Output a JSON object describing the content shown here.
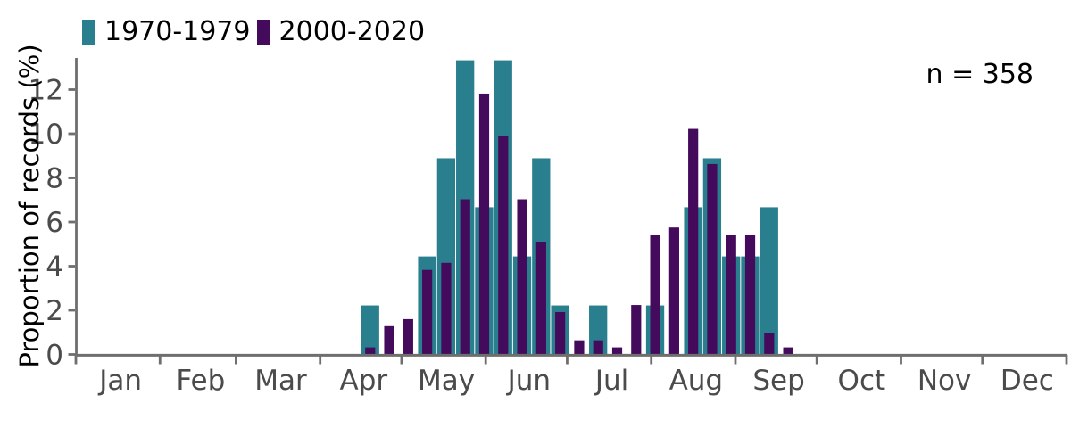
{
  "figure": {
    "y_axis_title": "Proportion of records (%)",
    "annotation": "n = 358",
    "legend": [
      {
        "label": "1970-1979",
        "color": "#2a7f8e"
      },
      {
        "label": "2000-2020",
        "color": "#440a5c"
      }
    ]
  },
  "chart_data": {
    "type": "bar",
    "title": "",
    "xlabel": "",
    "ylabel": "Proportion of records (%)",
    "annotation": "n = 358",
    "legend_position": "top-left",
    "grid": false,
    "background": "#ffffff",
    "axis_color": "#6e6e6e",
    "tick_label_color": "#4b4b4b",
    "x_tick_labels": [
      "Jan",
      "Feb",
      "Mar",
      "Apr",
      "May",
      "Jun",
      "Jul",
      "Aug",
      "Sep",
      "Oct",
      "Nov",
      "Dec"
    ],
    "y_ticks": [
      0,
      2,
      4,
      6,
      8,
      10,
      12
    ],
    "ylim": [
      0,
      13.4
    ],
    "x_axis_note": "calendar year, day-of-year scale; ticks at month starts; bars are 7-day bins starting Apr 15",
    "bin_start_day_of_year": 105,
    "bin_days": 7,
    "categories": [
      "Apr 15",
      "Apr 22",
      "Apr 29",
      "May 6",
      "May 13",
      "May 20",
      "May 27",
      "Jun 3",
      "Jun 10",
      "Jun 17",
      "Jun 24",
      "Jul 1",
      "Jul 8",
      "Jul 15",
      "Jul 22",
      "Jul 29",
      "Aug 5",
      "Aug 12",
      "Aug 19",
      "Aug 26",
      "Sep 2",
      "Sep 9",
      "Sep 16"
    ],
    "series": [
      {
        "name": "1970-1979",
        "color": "#2a7f8e",
        "values": [
          2.22,
          0,
          0,
          4.44,
          8.89,
          13.33,
          6.67,
          13.33,
          4.44,
          8.89,
          2.22,
          0,
          2.22,
          0,
          0,
          2.22,
          0,
          6.67,
          8.89,
          4.44,
          4.44,
          6.67,
          0
        ]
      },
      {
        "name": "2000-2020",
        "color": "#440a5c",
        "values": [
          0.32,
          1.28,
          1.6,
          3.83,
          4.15,
          7.03,
          11.82,
          9.9,
          7.03,
          5.11,
          1.92,
          0.64,
          0.64,
          0.32,
          2.24,
          5.43,
          5.75,
          10.22,
          8.63,
          5.43,
          5.43,
          0.96,
          0.32
        ]
      }
    ]
  }
}
